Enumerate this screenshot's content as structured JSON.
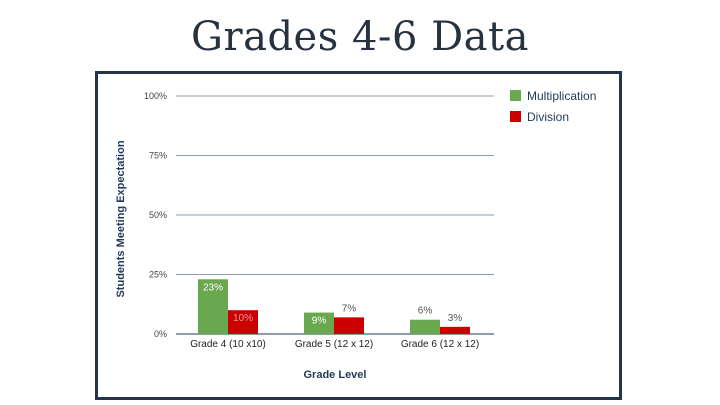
{
  "slide": {
    "title": "Grades 4-6 Data"
  },
  "colors": {
    "multiplication": "#6aa84f",
    "division": "#cc0000",
    "gridline": "#1f3a5a",
    "frame": "#24344d"
  },
  "chart_data": {
    "type": "bar",
    "title": "",
    "xlabel": "Grade Level",
    "ylabel": "Students Meeting Expectation",
    "categories": [
      "Grade 4 (10 x10)",
      "Grade 5 (12 x 12)",
      "Grade 6 (12 x 12)"
    ],
    "series": [
      {
        "name": "Multiplication",
        "values": [
          23,
          9,
          6
        ],
        "labels": [
          "23%",
          "9%",
          "6%"
        ]
      },
      {
        "name": "Division",
        "values": [
          10,
          7,
          3
        ],
        "labels": [
          "10%",
          "7%",
          "3%"
        ]
      }
    ],
    "ylim": [
      0,
      100
    ],
    "yticks": [
      0,
      25,
      50,
      75,
      100
    ],
    "ytick_labels": [
      "0%",
      "25%",
      "50%",
      "75%",
      "100%"
    ],
    "grid": true,
    "legend_position": "top-right"
  }
}
